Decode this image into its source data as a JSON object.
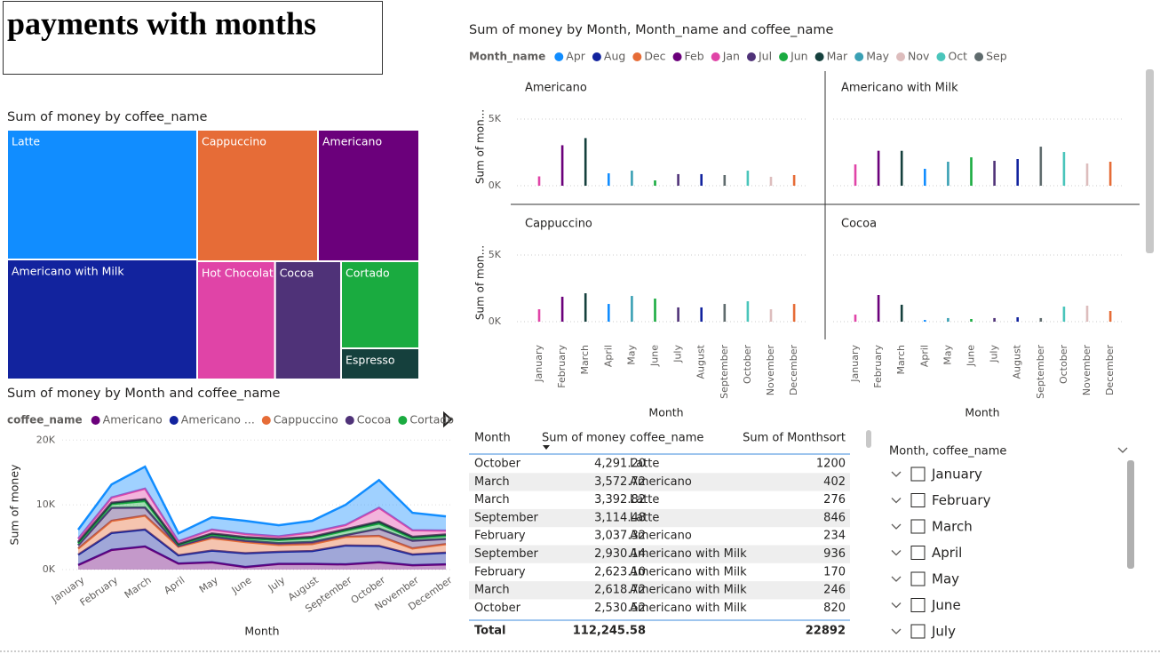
{
  "title": "payments with months",
  "chart_data": [
    {
      "type": "treemap",
      "title": "Sum of money by coffee_name",
      "categories": [
        "Latte",
        "Americano with Milk",
        "Cappuccino",
        "Americano",
        "Hot Chocolate",
        "Cocoa",
        "Cortado",
        "Espresso"
      ],
      "values": [
        26895,
        24870,
        17327,
        14524,
        10041,
        8507,
        7424,
        2652
      ],
      "colors": [
        "#118DFF",
        "#12239E",
        "#E66C37",
        "#6B007B",
        "#E044A7",
        "#4F3278",
        "#1AAB40",
        "#15403D"
      ]
    },
    {
      "type": "bar",
      "title": "Sum of money by Month, Month_name and coffee_name",
      "legend_title": "Month_name",
      "legend": [
        {
          "name": "Apr",
          "color": "#118DFF"
        },
        {
          "name": "Aug",
          "color": "#12239E"
        },
        {
          "name": "Dec",
          "color": "#E66C37"
        },
        {
          "name": "Feb",
          "color": "#6B007B"
        },
        {
          "name": "Jan",
          "color": "#E044A7"
        },
        {
          "name": "Jul",
          "color": "#4F3278"
        },
        {
          "name": "Jun",
          "color": "#1AAB40"
        },
        {
          "name": "Mar",
          "color": "#15403D"
        },
        {
          "name": "May",
          "color": "#3AA0B4"
        },
        {
          "name": "Nov",
          "color": "#DDBDBD"
        },
        {
          "name": "Oct",
          "color": "#4AC5BB"
        },
        {
          "name": "Sep",
          "color": "#5F6B6D"
        }
      ],
      "categories": [
        "January",
        "February",
        "March",
        "April",
        "May",
        "June",
        "July",
        "August",
        "September",
        "October",
        "November",
        "December"
      ],
      "bar_colors": [
        "#E044A7",
        "#6B007B",
        "#15403D",
        "#118DFF",
        "#3AA0B4",
        "#1AAB40",
        "#4F3278",
        "#12239E",
        "#5F6B6D",
        "#4AC5BB",
        "#DDBDBD",
        "#E66C37"
      ],
      "x_label": "Month",
      "y_label": "Sum of mon...",
      "ylim": [
        0,
        6500
      ],
      "yticks": [
        {
          "value": 0,
          "label": "0K"
        },
        {
          "value": 5000,
          "label": "5K"
        }
      ],
      "grid": true,
      "panels": [
        {
          "name": "Americano",
          "values": [
            700,
            3037.32,
            3572.72,
            930,
            1130,
            400,
            870,
            870,
            800,
            1130,
            670,
            800
          ]
        },
        {
          "name": "Americano with Milk",
          "values": [
            1600,
            2623.1,
            2618.72,
            1270,
            1800,
            2130,
            1870,
            2000,
            2930.14,
            2530.52,
            1670,
            1800
          ]
        },
        {
          "name": "Cappuccino",
          "values": [
            930,
            1870,
            2130,
            1330,
            1930,
            1730,
            1070,
            1070,
            1330,
            1530,
            930,
            1330
          ]
        },
        {
          "name": "Cocoa",
          "values": [
            530,
            2000,
            1270,
            130,
            270,
            200,
            270,
            330,
            270,
            1130,
            1200,
            800
          ]
        }
      ]
    },
    {
      "type": "area",
      "stacked": true,
      "title": "Sum of money by Month and coffee_name",
      "legend_title": "coffee_name",
      "legend": [
        "Americano",
        "Americano ...",
        "Cappuccino",
        "Cocoa",
        "Cortado"
      ],
      "categories": [
        "January",
        "February",
        "March",
        "April",
        "May",
        "June",
        "July",
        "August",
        "September",
        "October",
        "November",
        "December"
      ],
      "x_label": "Month",
      "y_label": "Sum of money",
      "ylim": [
        0,
        21000
      ],
      "yticks": [
        {
          "value": 0,
          "label": "0K"
        },
        {
          "value": 10000,
          "label": "10K"
        },
        {
          "value": 20000,
          "label": "20K"
        }
      ],
      "series": [
        {
          "name": "Americano",
          "color": "#6B007B",
          "values": [
            700,
            3037.32,
            3572.72,
            930,
            1130,
            400,
            870,
            870,
            800,
            1130,
            670,
            800
          ]
        },
        {
          "name": "Americano with Milk",
          "color": "#12239E",
          "values": [
            1600,
            2623.1,
            2618.72,
            1270,
            1800,
            2130,
            1870,
            2000,
            2930.14,
            2530.52,
            1670,
            1800
          ]
        },
        {
          "name": "Cappuccino",
          "color": "#E66C37",
          "values": [
            930,
            1870,
            2130,
            1330,
            1930,
            1730,
            1070,
            1070,
            1330,
            1530,
            930,
            1330
          ]
        },
        {
          "name": "Cocoa",
          "color": "#4F3278",
          "values": [
            530,
            2000,
            1270,
            130,
            270,
            200,
            270,
            330,
            270,
            1130,
            1200,
            800
          ]
        },
        {
          "name": "Cortado",
          "color": "#1AAB40",
          "values": [
            300,
            600,
            1000,
            200,
            300,
            400,
            500,
            600,
            700,
            800,
            400,
            500
          ]
        },
        {
          "name": "Espresso",
          "color": "#15403D",
          "values": [
            200,
            200,
            300,
            100,
            150,
            150,
            150,
            200,
            200,
            300,
            200,
            200
          ]
        },
        {
          "name": "Hot Chocolate",
          "color": "#E044A7",
          "values": [
            500,
            800,
            1615,
            400,
            600,
            500,
            400,
            700,
            660,
            2120,
            1000,
            600
          ]
        },
        {
          "name": "Latte",
          "color": "#118DFF",
          "values": [
            1400,
            2020,
            3392.82,
            1240,
            1900,
            2020,
            1720,
            1760,
            3114.48,
            4291.2,
            2700,
            2190
          ]
        }
      ]
    }
  ],
  "table": {
    "columns": [
      "Month",
      "Sum of money",
      "coffee_name",
      "Sum of Monthsort"
    ],
    "rows": [
      [
        "October",
        "4,291.20",
        "Latte",
        1200
      ],
      [
        "March",
        "3,572.72",
        "Americano",
        402
      ],
      [
        "March",
        "3,392.82",
        "Latte",
        276
      ],
      [
        "September",
        "3,114.48",
        "Latte",
        846
      ],
      [
        "February",
        "3,037.32",
        "Americano",
        234
      ],
      [
        "September",
        "2,930.14",
        "Americano with Milk",
        936
      ],
      [
        "February",
        "2,623.10",
        "Americano with Milk",
        170
      ],
      [
        "March",
        "2,618.72",
        "Americano with Milk",
        246
      ],
      [
        "October",
        "2,530.52",
        "Americano with Milk",
        820
      ]
    ],
    "total": [
      "Total",
      "112,245.58",
      22892
    ]
  },
  "slicer": {
    "title": "Month, coffee_name",
    "items": [
      "January",
      "February",
      "March",
      "April",
      "May",
      "June",
      "July"
    ]
  }
}
